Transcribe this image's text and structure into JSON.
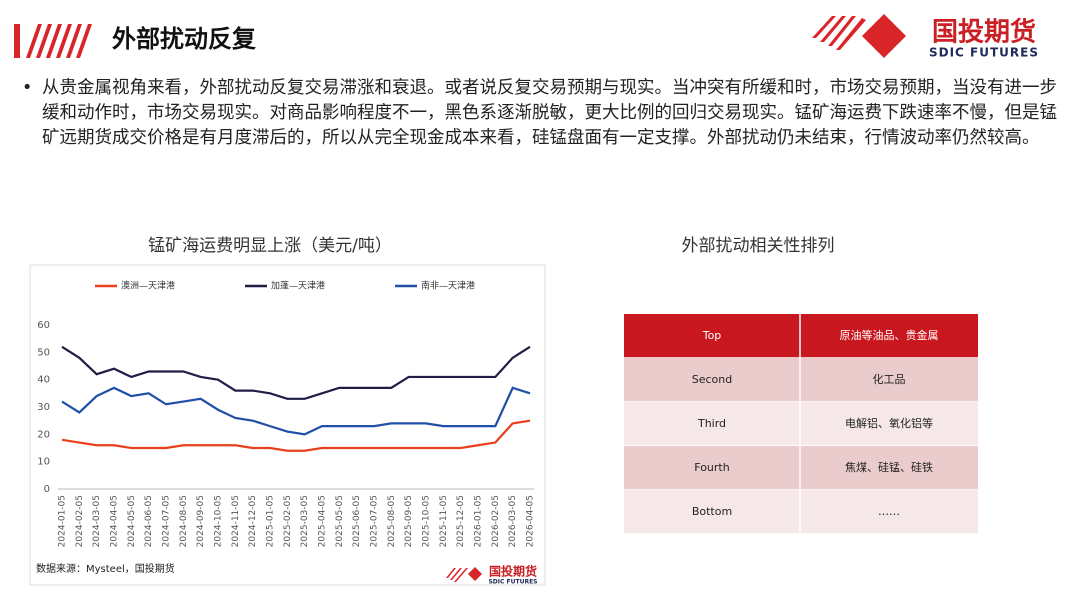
{
  "header": {
    "title": "外部扰动反复",
    "logo_name": "国投期货",
    "logo_en": "SDIC FUTURES"
  },
  "bullet": "从贵金属视角来看，外部扰动反复交易滞涨和衰退。或者说反复交易预期与现实。当冲突有所缓和时，市场交易预期，当没有进一步缓和动作时，市场交易现实。对商品影响程度不一，黑色系逐渐脱敏，更大比例的回归交易现实。锰矿海运费下跌速率不慢，但是锰矿远期货成交价格是有月度滞后的，所以从完全现金成本来看，硅锰盘面有一定支撑。外部扰动仍未结束，行情波动率仍然较高。",
  "chart_data": {
    "type": "line",
    "title": "锰矿海运费明显上涨（美元/吨）",
    "categories": [
      "2024-01-05",
      "2024-02-05",
      "2024-03-05",
      "2024-04-05",
      "2024-05-05",
      "2024-06-05",
      "2024-07-05",
      "2024-08-05",
      "2024-09-05",
      "2024-10-05",
      "2024-11-05",
      "2024-12-05",
      "2025-01-05",
      "2025-02-05",
      "2025-03-05",
      "2025-04-05",
      "2025-05-05",
      "2025-06-05",
      "2025-07-05",
      "2025-08-05",
      "2025-09-05",
      "2025-10-05",
      "2025-11-05",
      "2025-12-05",
      "2026-01-05",
      "2026-02-05",
      "2026-03-05",
      "2026-04-05"
    ],
    "series": [
      {
        "name": "澳洲—天津港",
        "color": "#e8401c",
        "values": [
          18,
          17,
          16,
          16,
          15,
          15,
          15,
          16,
          16,
          16,
          16,
          15,
          15,
          14,
          14,
          15,
          15,
          15,
          15,
          15,
          15,
          15,
          15,
          15,
          16,
          17,
          24,
          25
        ]
      },
      {
        "name": "加蓬—天津港",
        "color": "#1e1e46",
        "values": [
          52,
          48,
          42,
          44,
          41,
          43,
          43,
          43,
          41,
          40,
          36,
          36,
          35,
          33,
          33,
          35,
          37,
          37,
          37,
          37,
          41,
          41,
          41,
          41,
          41,
          41,
          48,
          52
        ]
      },
      {
        "name": "南非—天津港",
        "color": "#1f4fa8",
        "values": [
          32,
          28,
          34,
          37,
          34,
          35,
          31,
          32,
          33,
          29,
          26,
          25,
          23,
          21,
          20,
          23,
          23,
          23,
          23,
          24,
          24,
          24,
          23,
          23,
          23,
          23,
          37,
          35
        ]
      }
    ],
    "ylim": [
      0,
      60
    ],
    "yticks": [
      0,
      10,
      20,
      30,
      40,
      50,
      60
    ],
    "grid": false,
    "source": "数据来源：Mysteel，国投期货",
    "watermark": [
      "国投期货",
      "SDIC FUTURES"
    ]
  },
  "table": {
    "title": "外部扰动相关性排列",
    "rows": [
      [
        "Top",
        "原油等油品、贵金属"
      ],
      [
        "Second",
        "化工品"
      ],
      [
        "Third",
        "电解铝、氧化铝等"
      ],
      [
        "Fourth",
        "焦煤、硅锰、硅铁"
      ],
      [
        "Bottom",
        "……"
      ]
    ]
  }
}
